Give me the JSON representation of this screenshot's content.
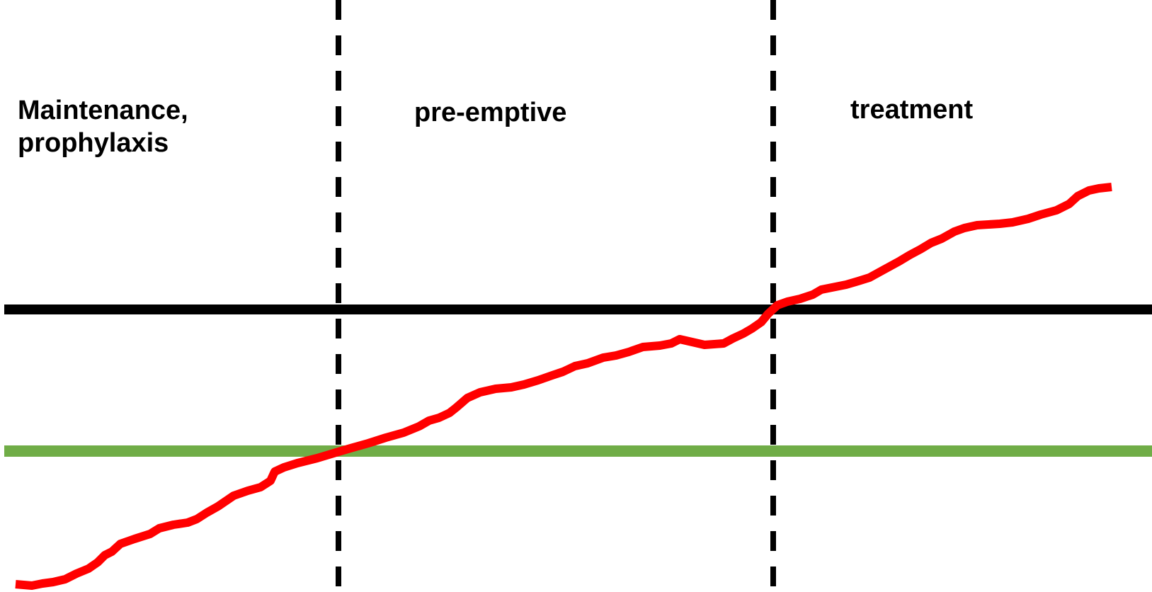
{
  "zones": [
    {
      "id": "maintenance",
      "label": "Maintenance,\nprophylaxis"
    },
    {
      "id": "pre_emptive",
      "label": "pre-emptive"
    },
    {
      "id": "treatment",
      "label": "treatment"
    }
  ],
  "colors": {
    "curve": "#ff0000",
    "upper_threshold": "#000000",
    "lower_threshold": "#70ad47",
    "divider": "#000000",
    "background": "#ffffff"
  }
}
